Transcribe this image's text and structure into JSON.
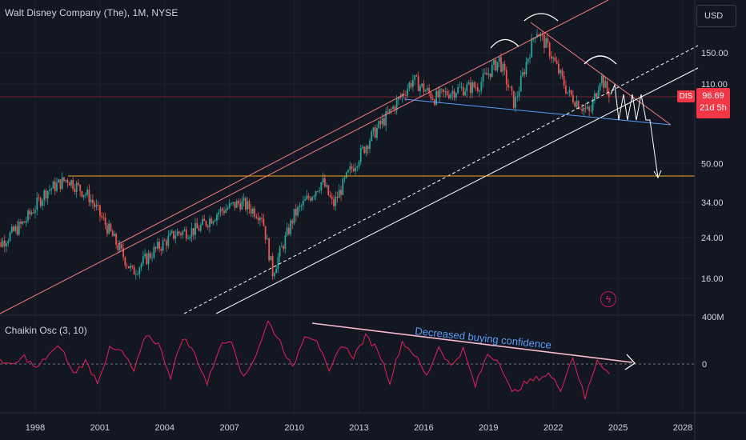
{
  "header": {
    "title": "Walt Disney Company (The), 1M, NYSE",
    "currency": "USD"
  },
  "price_badge": {
    "ticker": "DIS",
    "price": "96.69",
    "countdown": "21d 5h"
  },
  "oscillator": {
    "title": "Chaikin Osc (3, 10)",
    "annotation": "Decreased buying confidence"
  },
  "colors": {
    "background": "#131722",
    "up": "#26a69a",
    "down": "#ef5350",
    "channel": "#f77c80",
    "support": "#ffffff",
    "neckline": "#5b9cf6",
    "level": "#f5a623",
    "osc": "#e91e63",
    "annotation_text": "#5b9cf6"
  },
  "icons": {
    "flash": "flash-icon"
  },
  "chart_data": [
    {
      "type": "candlestick",
      "title": "Walt Disney Company (The), 1M, NYSE",
      "scale": "log",
      "y_ticks": [
        "150.00",
        "110.00",
        "50.00",
        "34.00",
        "24.00",
        "16.00"
      ],
      "x_ticks": [
        "1998",
        "2001",
        "2004",
        "2007",
        "2010",
        "2013",
        "2016",
        "2019",
        "2022",
        "2025",
        "2028"
      ],
      "last_price": 96.69,
      "horizontal_level": 44,
      "approx_close_path": [
        {
          "date": "1996.0",
          "close": 21
        },
        {
          "date": "1997.5",
          "close": 28
        },
        {
          "date": "1998.5",
          "close": 38
        },
        {
          "date": "1999.5",
          "close": 43
        },
        {
          "date": "2000.5",
          "close": 36
        },
        {
          "date": "2001.5",
          "close": 25
        },
        {
          "date": "2002.5",
          "close": 17
        },
        {
          "date": "2003.5",
          "close": 21
        },
        {
          "date": "2004.5",
          "close": 25
        },
        {
          "date": "2005.5",
          "close": 26
        },
        {
          "date": "2006.5",
          "close": 31
        },
        {
          "date": "2007.5",
          "close": 34
        },
        {
          "date": "2008.5",
          "close": 30
        },
        {
          "date": "2009.0",
          "close": 17
        },
        {
          "date": "2010.0",
          "close": 30
        },
        {
          "date": "2011.3",
          "close": 42
        },
        {
          "date": "2011.8",
          "close": 33
        },
        {
          "date": "2012.5",
          "close": 45
        },
        {
          "date": "2013.5",
          "close": 64
        },
        {
          "date": "2014.5",
          "close": 85
        },
        {
          "date": "2015.5",
          "close": 115
        },
        {
          "date": "2016.5",
          "close": 96
        },
        {
          "date": "2017.5",
          "close": 104
        },
        {
          "date": "2018.5",
          "close": 108
        },
        {
          "date": "2019.5",
          "close": 140
        },
        {
          "date": "2020.2",
          "close": 90
        },
        {
          "date": "2021.2",
          "close": 190
        },
        {
          "date": "2021.8",
          "close": 155
        },
        {
          "date": "2022.7",
          "close": 100
        },
        {
          "date": "2023.7",
          "close": 82
        },
        {
          "date": "2024.2",
          "close": 120
        },
        {
          "date": "2024.6",
          "close": 96.69
        }
      ]
    },
    {
      "type": "line",
      "title": "Chaikin Osc (3, 10)",
      "y_ticks": [
        "400M",
        "0"
      ],
      "series": [
        {
          "values": [
            10,
            -5,
            15,
            -10,
            20,
            35,
            -20,
            5,
            -35,
            30,
            25,
            -15,
            60,
            40,
            -25,
            55,
            20,
            -40,
            35,
            50,
            -30,
            20,
            85,
            45,
            -10,
            60,
            50,
            -20,
            40,
            15,
            55,
            30,
            -35,
            45,
            20,
            -25,
            35,
            -5,
            30,
            -45,
            20,
            5,
            -60,
            -40,
            -30,
            -20,
            -50,
            15,
            -70,
            10,
            -20
          ]
        }
      ]
    }
  ]
}
